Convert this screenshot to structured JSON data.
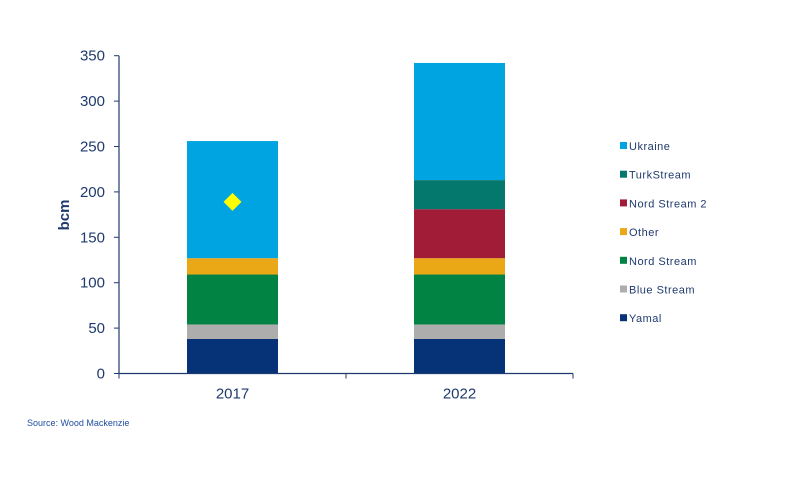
{
  "chart_data": {
    "type": "bar",
    "stacked": true,
    "title": "",
    "xlabel": "",
    "ylabel": "bcm",
    "ylim": [
      0,
      350
    ],
    "yticks": [
      0,
      50,
      100,
      150,
      200,
      250,
      300,
      350
    ],
    "categories": [
      "2017",
      "2022"
    ],
    "series": [
      {
        "name": "Yamal",
        "color": "#063377",
        "values": [
          38,
          38
        ]
      },
      {
        "name": "Blue Stream",
        "color": "#adadae",
        "values": [
          16,
          16
        ]
      },
      {
        "name": "Nord Stream",
        "color": "#008343",
        "values": [
          55,
          55
        ]
      },
      {
        "name": "Other",
        "color": "#eaa716",
        "values": [
          18,
          18
        ]
      },
      {
        "name": "Nord Stream 2",
        "color": "#a11c36",
        "values": [
          0,
          54
        ]
      },
      {
        "name": "TurkStream",
        "color": "#04786d",
        "values": [
          0,
          32
        ]
      },
      {
        "name": "Ukraine",
        "color": "#00a4e1",
        "values": [
          129,
          129
        ]
      }
    ],
    "marker": {
      "shape": "diamond",
      "color": "#ffff00",
      "category": "2017",
      "value": 189
    },
    "legend": {
      "placement": "right",
      "order": [
        "Ukraine",
        "TurkStream",
        "Nord Stream 2",
        "Other",
        "Nord Stream",
        "Blue Stream",
        "Yamal"
      ]
    },
    "grid": false
  },
  "source": "Source: Wood Mackenzie"
}
